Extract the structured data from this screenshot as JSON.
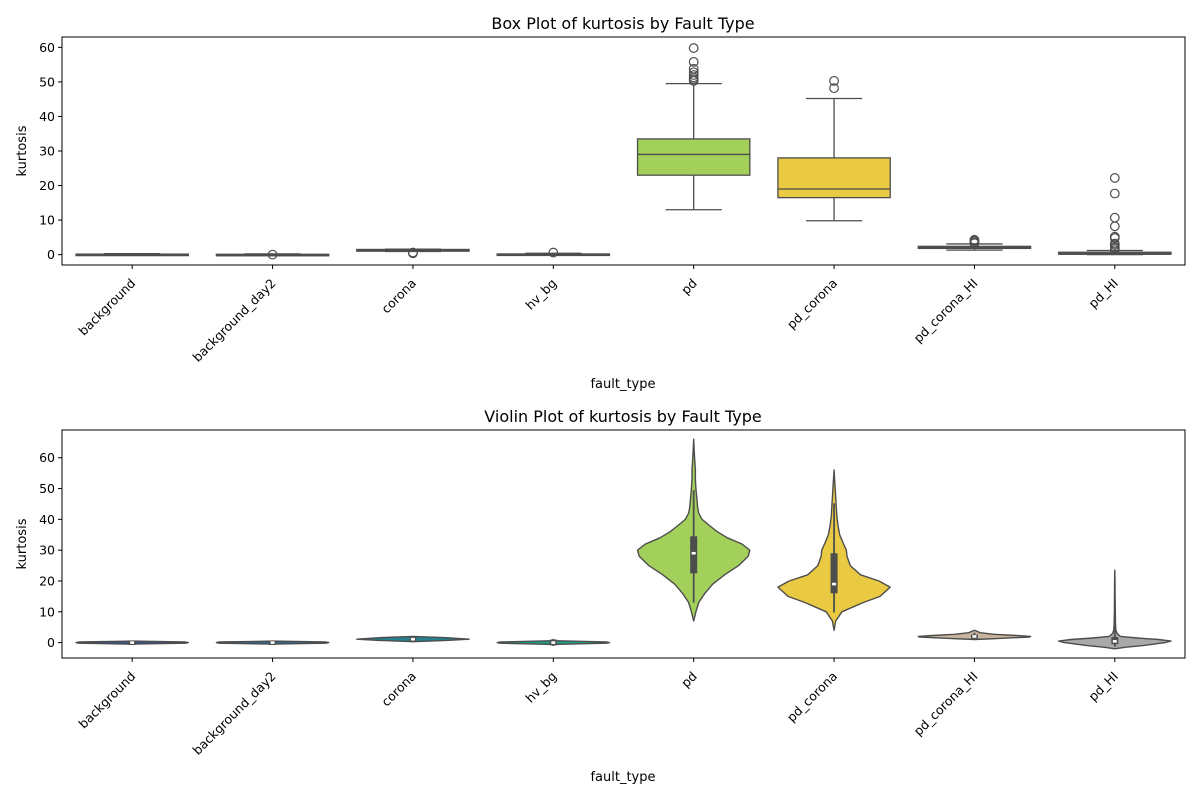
{
  "chart_data": [
    {
      "type": "box",
      "title": "Box Plot of kurtosis by Fault Type",
      "xlabel": "fault_type",
      "ylabel": "kurtosis",
      "ylim": [
        -3,
        63
      ],
      "yticks": [
        0,
        10,
        20,
        30,
        40,
        50,
        60
      ],
      "categories": [
        "background",
        "background_day2",
        "corona",
        "hv_bg",
        "pd",
        "pd_corona",
        "pd_corona_HI",
        "pd_HI"
      ],
      "colors": [
        "#3b528b",
        "#31688e",
        "#26828e",
        "#1f9e89",
        "#a2d05a",
        "#e9ca42",
        "#c9b49c",
        "#a9a9a9"
      ],
      "boxes": [
        {
          "min": -0.1,
          "q1": 0.0,
          "median": 0.05,
          "q3": 0.15,
          "max": 0.3,
          "outliers": []
        },
        {
          "min": -0.2,
          "q1": -0.1,
          "median": 0.0,
          "q3": 0.1,
          "max": 0.2,
          "outliers": [
            0.0
          ]
        },
        {
          "min": 0.9,
          "q1": 1.0,
          "median": 1.2,
          "q3": 1.5,
          "max": 1.6,
          "outliers": [
            0.4,
            0.6
          ]
        },
        {
          "min": -0.1,
          "q1": 0.0,
          "median": 0.1,
          "q3": 0.2,
          "max": 0.4,
          "outliers": [
            0.6
          ]
        },
        {
          "min": 13,
          "q1": 23,
          "median": 29,
          "q3": 33.5,
          "max": 49.5,
          "outliers": [
            50.3,
            50.8,
            51.3,
            52.0,
            52.8,
            53.8,
            55.8,
            59.8
          ]
        },
        {
          "min": 9.8,
          "q1": 16.5,
          "median": 19,
          "q3": 28,
          "max": 45.2,
          "outliers": [
            48.2,
            50.3
          ]
        },
        {
          "min": 1.3,
          "q1": 1.8,
          "median": 2.1,
          "q3": 2.4,
          "max": 3.1,
          "outliers": [
            3.3,
            3.6,
            4.0,
            4.3
          ]
        },
        {
          "min": 0.0,
          "q1": 0.1,
          "median": 0.35,
          "q3": 0.7,
          "max": 1.2,
          "outliers": [
            1.3,
            1.8,
            2.2,
            2.8,
            3.2,
            4.8,
            5.2,
            8.2,
            10.7,
            17.7,
            22.2
          ]
        }
      ]
    },
    {
      "type": "violin",
      "title": "Violin Plot of kurtosis by Fault Type",
      "xlabel": "fault_type",
      "ylabel": "kurtosis",
      "ylim": [
        -5,
        69
      ],
      "yticks": [
        0,
        10,
        20,
        30,
        40,
        50,
        60
      ],
      "categories": [
        "background",
        "background_day2",
        "corona",
        "hv_bg",
        "pd",
        "pd_corona",
        "pd_corona_HI",
        "pd_HI"
      ],
      "colors": [
        "#3b528b",
        "#31688e",
        "#26828e",
        "#1f9e89",
        "#a2d05a",
        "#e9ca42",
        "#c9b49c",
        "#a9a9a9"
      ],
      "violins": [
        {
          "density": [
            [
              -0.5,
              0.0
            ],
            [
              -0.2,
              0.95
            ],
            [
              0.0,
              1.0
            ],
            [
              0.2,
              0.95
            ],
            [
              0.5,
              0.0
            ]
          ],
          "q1": -0.2,
          "median": 0.0,
          "q3": 0.2,
          "whisker": [
            -0.4,
            0.4
          ]
        },
        {
          "density": [
            [
              -0.5,
              0.0
            ],
            [
              -0.2,
              0.95
            ],
            [
              0.0,
              1.0
            ],
            [
              0.2,
              0.95
            ],
            [
              0.5,
              0.0
            ]
          ],
          "q1": -0.2,
          "median": 0.0,
          "q3": 0.2,
          "whisker": [
            -0.4,
            0.4
          ]
        },
        {
          "density": [
            [
              0.3,
              0.0
            ],
            [
              0.7,
              0.6
            ],
            [
              1.1,
              1.0
            ],
            [
              1.6,
              0.6
            ],
            [
              2.0,
              0.0
            ]
          ],
          "q1": 0.5,
          "median": 1.1,
          "q3": 1.7,
          "whisker": [
            0.2,
            2.1
          ]
        },
        {
          "density": [
            [
              -0.6,
              0.0
            ],
            [
              -0.2,
              0.95
            ],
            [
              0.0,
              1.0
            ],
            [
              0.2,
              0.95
            ],
            [
              0.6,
              0.0
            ]
          ],
          "q1": -0.9,
          "median": 0.0,
          "q3": 1.0,
          "whisker": [
            -1.1,
            1.2
          ]
        },
        {
          "density": [
            [
              7,
              0.0
            ],
            [
              10,
              0.04
            ],
            [
              13,
              0.09
            ],
            [
              16,
              0.2
            ],
            [
              19,
              0.34
            ],
            [
              22,
              0.55
            ],
            [
              25,
              0.8
            ],
            [
              28,
              0.97
            ],
            [
              30,
              1.0
            ],
            [
              32,
              0.86
            ],
            [
              34,
              0.6
            ],
            [
              36,
              0.42
            ],
            [
              38,
              0.28
            ],
            [
              40,
              0.15
            ],
            [
              42,
              0.09
            ],
            [
              44,
              0.07
            ],
            [
              46,
              0.06
            ],
            [
              48,
              0.05
            ],
            [
              50,
              0.04
            ],
            [
              53,
              0.03
            ],
            [
              56,
              0.03
            ],
            [
              59,
              0.02
            ],
            [
              62,
              0.01
            ],
            [
              66,
              0.0
            ]
          ],
          "q1": 22.5,
          "median": 29,
          "q3": 34.5,
          "whisker": [
            13,
            49.5
          ]
        },
        {
          "density": [
            [
              4,
              0.0
            ],
            [
              7,
              0.03
            ],
            [
              10,
              0.14
            ],
            [
              13,
              0.52
            ],
            [
              15,
              0.82
            ],
            [
              18,
              1.0
            ],
            [
              20,
              0.8
            ],
            [
              22,
              0.47
            ],
            [
              25,
              0.29
            ],
            [
              28,
              0.23
            ],
            [
              30,
              0.22
            ],
            [
              32,
              0.17
            ],
            [
              35,
              0.1
            ],
            [
              38,
              0.07
            ],
            [
              41,
              0.05
            ],
            [
              44,
              0.04
            ],
            [
              47,
              0.03
            ],
            [
              50,
              0.02
            ],
            [
              53,
              0.01
            ],
            [
              56,
              0.0
            ]
          ],
          "q1": 16,
          "median": 19,
          "q3": 29,
          "whisker": [
            9.8,
            45.2
          ]
        },
        {
          "density": [
            [
              1.0,
              0.0
            ],
            [
              1.4,
              0.5
            ],
            [
              1.8,
              0.98
            ],
            [
              2.0,
              1.0
            ],
            [
              2.3,
              0.75
            ],
            [
              2.7,
              0.35
            ],
            [
              3.2,
              0.1
            ],
            [
              3.8,
              0.03
            ],
            [
              4.0,
              0.0
            ]
          ],
          "q1": 1.3,
          "median": 2.0,
          "q3": 2.6,
          "whisker": [
            1.0,
            3.2
          ]
        },
        {
          "density": [
            [
              -2,
              0.0
            ],
            [
              -1.5,
              0.2
            ],
            [
              -1,
              0.48
            ],
            [
              0,
              0.9
            ],
            [
              0.5,
              1.0
            ],
            [
              1,
              0.78
            ],
            [
              1.5,
              0.4
            ],
            [
              2,
              0.1
            ],
            [
              3,
              0.04
            ],
            [
              4,
              0.02
            ],
            [
              6,
              0.012
            ],
            [
              10,
              0.008
            ],
            [
              15,
              0.006
            ],
            [
              20,
              0.004
            ],
            [
              23.5,
              0.0
            ]
          ],
          "q1": -0.5,
          "median": 0.4,
          "q3": 1.8,
          "whisker": [
            -1.3,
            5.5
          ]
        }
      ]
    }
  ]
}
